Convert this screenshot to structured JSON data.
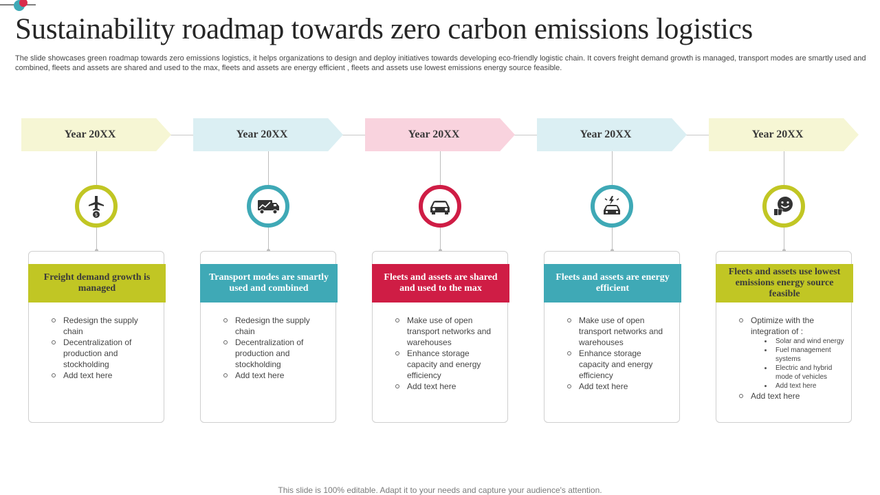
{
  "slide": {
    "title": "Sustainability roadmap towards zero carbon emissions logistics",
    "subtitle": "The slide showcases green roadmap towards zero emissions logistics, it helps organizations to design and deploy initiatives towards developing eco-friendly logistic chain. It covers freight demand growth is managed, transport modes are smartly used and combined, fleets and assets are shared and used to the max, fleets and assets are energy efficient , fleets and assets use lowest emissions energy source feasible.",
    "footer": "This slide is 100% editable. Adapt it to your needs and capture your audience's attention.",
    "brand_colors": {
      "accent_teal": "#3fa9b6",
      "accent_red": "#d92b4b"
    }
  },
  "milestones": [
    {
      "year": "Year 20XX",
      "banner_color": "#f6f6d4",
      "accent_color": "#c1c624",
      "icon": "airplane-money-icon",
      "heading": "Freight demand growth is managed",
      "points": [
        {
          "text": "Redesign the supply chain"
        },
        {
          "text": "Decentralization of production and stockholding"
        },
        {
          "text": "Add text here"
        }
      ]
    },
    {
      "year": "Year 20XX",
      "banner_color": "#dbeff3",
      "accent_color": "#3fa9b6",
      "icon": "delivery-truck-icon",
      "heading": "Transport modes are smartly used and combined",
      "points": [
        {
          "text": "Redesign the supply chain"
        },
        {
          "text": "Decentralization of production and stockholding"
        },
        {
          "text": "Add text here"
        }
      ]
    },
    {
      "year": "Year 20XX",
      "banner_color": "#f9d3de",
      "accent_color": "#cf1d45",
      "icon": "car-icon",
      "heading": "Fleets and assets are shared and used to the max",
      "points": [
        {
          "text": "Make use of open transport networks and warehouses"
        },
        {
          "text": "Enhance storage capacity and energy efficiency"
        },
        {
          "text": "Add text here"
        }
      ]
    },
    {
      "year": "Year 20XX",
      "banner_color": "#dbeff3",
      "accent_color": "#3fa9b6",
      "icon": "electric-car-icon",
      "heading": "Fleets and assets are energy efficient",
      "points": [
        {
          "text": "Make use of open transport networks and warehouses"
        },
        {
          "text": "Enhance storage capacity and energy efficiency"
        },
        {
          "text": "Add text here"
        }
      ]
    },
    {
      "year": "Year 20XX",
      "banner_color": "#f6f6d4",
      "accent_color": "#c1c624",
      "icon": "smiley-thumbs-down-icon",
      "heading": "Fleets and assets use lowest emissions energy source feasible",
      "points": [
        {
          "text": "Optimize with the integration of :",
          "sub": [
            "Solar and wind energy",
            "Fuel management systems",
            "Electric and hybrid mode of vehicles",
            "Add text here"
          ]
        },
        {
          "text": "Add text here"
        }
      ]
    }
  ]
}
